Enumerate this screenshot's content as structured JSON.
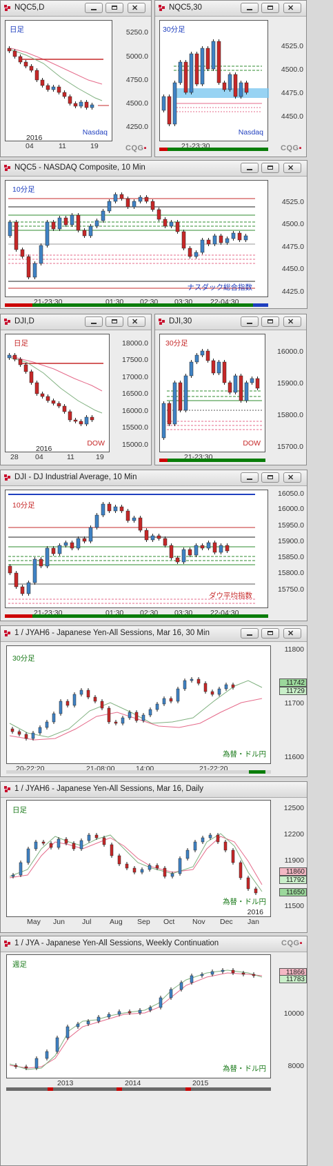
{
  "colors": {
    "up": "#3f82c4",
    "down": "#c62828",
    "ma_red": "#e56a8a",
    "ma_green": "#7fb07f",
    "accent": "#c8102e"
  },
  "logo_text": "CQG",
  "icons": {
    "window": "cqg-window-icon",
    "minimize": "minimize-icon",
    "maximize": "maximize-icon",
    "close": "close-icon"
  },
  "w1": {
    "title": "NQC5,D",
    "label": "日足",
    "symbol_note": "Nasdaq",
    "y_labels": [
      "5250.0",
      "5000.0",
      "4750.0",
      "4500.0",
      "4250.0"
    ],
    "x_labels": [
      "04",
      "11",
      "19"
    ],
    "year": "2016"
  },
  "w2": {
    "title": "NQC5,30",
    "label": "30分足",
    "symbol_note": "Nasdaq",
    "y_labels": [
      "4525.0",
      "4500.0",
      "4475.0",
      "4450.0"
    ],
    "x_labels": [
      "21-23:30"
    ]
  },
  "w3": {
    "title": "NQC5 - NASDAQ Composite, 10 Min",
    "label": "10分足",
    "symbol_note": "ナスダック総合指数",
    "y_labels": [
      "4525.0",
      "4500.0",
      "4475.0",
      "4450.0",
      "4425.0"
    ],
    "x_labels": [
      "21-23:30",
      "01:30",
      "02:30",
      "03:30",
      "22-04:30"
    ]
  },
  "w4": {
    "title": "DJI,D",
    "label": "日足",
    "symbol_note": "DOW",
    "y_labels": [
      "18000.0",
      "17500.0",
      "17000.0",
      "16500.0",
      "16000.0",
      "15500.0",
      "15000.0"
    ],
    "x_labels": [
      "28",
      "04",
      "11",
      "19"
    ],
    "year": "2016"
  },
  "w5": {
    "title": "DJI,30",
    "label": "30分足",
    "symbol_note": "DOW",
    "y_labels": [
      "16000.0",
      "15900.0",
      "15800.0",
      "15700.0"
    ],
    "x_labels": [
      "21-23:30"
    ]
  },
  "w6": {
    "title": "DJI - DJ Industrial Average, 10 Min",
    "label": "10分足",
    "symbol_note": "ダウ平均指数",
    "y_labels": [
      "16050.0",
      "16000.0",
      "15950.0",
      "15900.0",
      "15850.0",
      "15800.0",
      "15750.0"
    ],
    "x_labels": [
      "21-23:30",
      "01:30",
      "02:30",
      "03:30",
      "22-04:30"
    ]
  },
  "w7": {
    "title": "1 / JYAH6 - Japanese Yen-All Sessions, Mar 16, 30 Min",
    "label": "30分足",
    "symbol_note": "為替・ドル円",
    "y_labels": [
      "11800",
      "11700",
      "11600"
    ],
    "flags": [
      "11742",
      "11729"
    ],
    "x_labels": [
      "20-22:20",
      "21-08:00",
      "14:00",
      "21-22:20"
    ]
  },
  "w8": {
    "title": "1 / JYAH6 - Japanese Yen-All Sessions, Mar 16, Daily",
    "label": "日足",
    "symbol_note": "為替・ドル円",
    "y_labels": [
      "12500",
      "12200",
      "11900",
      "11500"
    ],
    "flags": [
      "11860",
      "11792",
      "11650"
    ],
    "year": "2016",
    "x_labels": [
      "May",
      "Jun",
      "Jul",
      "Aug",
      "Sep",
      "Oct",
      "Nov",
      "Dec",
      "Jan"
    ]
  },
  "w9": {
    "title": "1 / JYA - Japanese Yen-All Sessions, Weekly Continuation",
    "label": "週足",
    "symbol_note": "為替・ドル円",
    "y_labels": [
      "10000",
      "8000"
    ],
    "flags": [
      "11866",
      "11783"
    ],
    "x_labels": [
      "2013",
      "2014",
      "2015"
    ]
  }
}
